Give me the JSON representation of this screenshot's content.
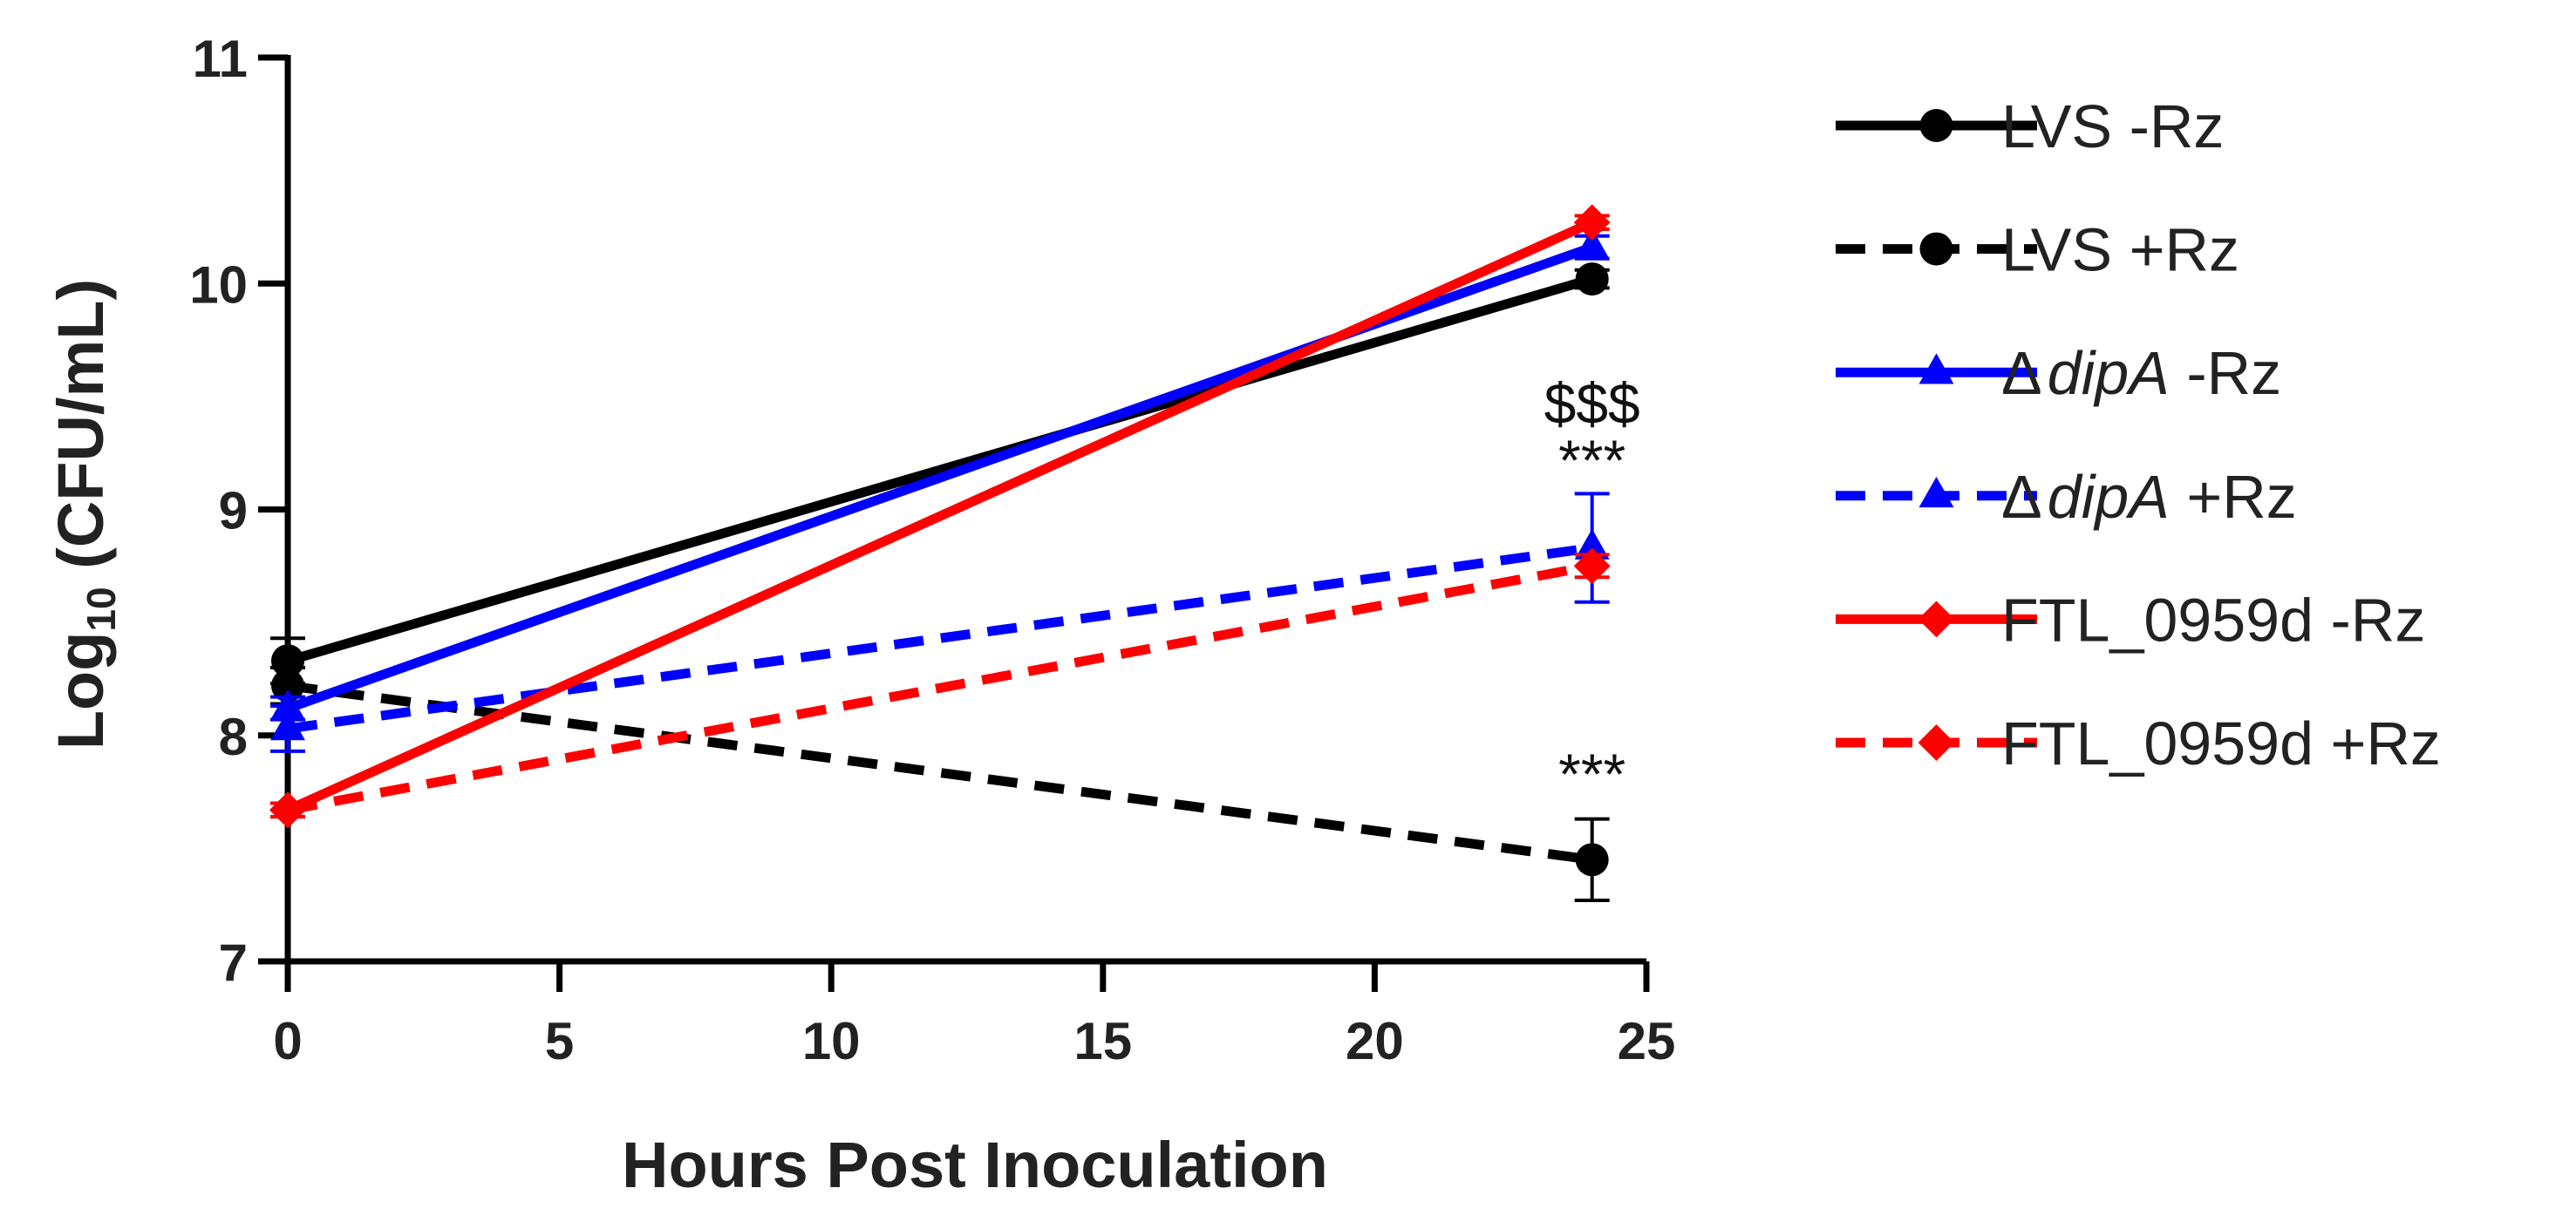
{
  "chart_data": {
    "type": "line",
    "title": "",
    "xlabel": "Hours Post Inoculation",
    "ylabel_main": "Log",
    "ylabel_sub": "10",
    "ylabel_rest": " (CFU/mL)",
    "xlim": [
      0,
      25
    ],
    "ylim": [
      7,
      11
    ],
    "xticks": [
      "0",
      "5",
      "10",
      "15",
      "20",
      "25"
    ],
    "yticks": [
      "7",
      "8",
      "9",
      "10",
      "11"
    ],
    "x": [
      0,
      24
    ],
    "legend_position": "right",
    "series": [
      {
        "key": "lvs_minus",
        "name": "LVS -Rz",
        "italic": "",
        "prefix": "",
        "suffix": "",
        "color": "#000000",
        "dash": false,
        "marker": "circle",
        "values": [
          8.33,
          10.02
        ],
        "err": [
          0.1,
          0.04
        ]
      },
      {
        "key": "lvs_plus",
        "name": "LVS +Rz",
        "italic": "",
        "prefix": "",
        "suffix": "",
        "color": "#000000",
        "dash": true,
        "marker": "circle",
        "values": [
          8.22,
          7.45
        ],
        "err": [
          0.08,
          0.18
        ]
      },
      {
        "key": "dipa_minus",
        "name": "ΔdipA -Rz",
        "prefix": "Δ",
        "italic": "dipA",
        "suffix": " -Rz",
        "color": "#0000ff",
        "dash": false,
        "marker": "triangle",
        "values": [
          8.12,
          10.16
        ],
        "err": [
          0.05,
          0.05
        ]
      },
      {
        "key": "dipa_plus",
        "name": "ΔdipA +Rz",
        "prefix": "Δ",
        "italic": "dipA",
        "suffix": " +Rz",
        "color": "#0000ff",
        "dash": true,
        "marker": "triangle",
        "values": [
          8.03,
          8.83
        ],
        "err": [
          0.1,
          0.24
        ]
      },
      {
        "key": "ftl_minus",
        "name": "FTL_0959d -Rz",
        "italic": "",
        "prefix": "",
        "suffix": "",
        "color": "#ff0000",
        "dash": false,
        "marker": "diamond",
        "values": [
          7.67,
          10.27
        ],
        "err": [
          0.03,
          0.03
        ]
      },
      {
        "key": "ftl_plus",
        "name": "FTL_0959d +Rz",
        "italic": "",
        "prefix": "",
        "suffix": "",
        "color": "#ff0000",
        "dash": true,
        "marker": "diamond",
        "values": [
          7.67,
          8.75
        ],
        "err": [
          0.03,
          0.05
        ]
      }
    ],
    "annotations": [
      {
        "text": "$$$",
        "x": 24,
        "y": 9.38
      },
      {
        "text": "***",
        "x": 24,
        "y": 9.13
      },
      {
        "text": "***",
        "x": 24,
        "y": 7.74
      }
    ]
  }
}
